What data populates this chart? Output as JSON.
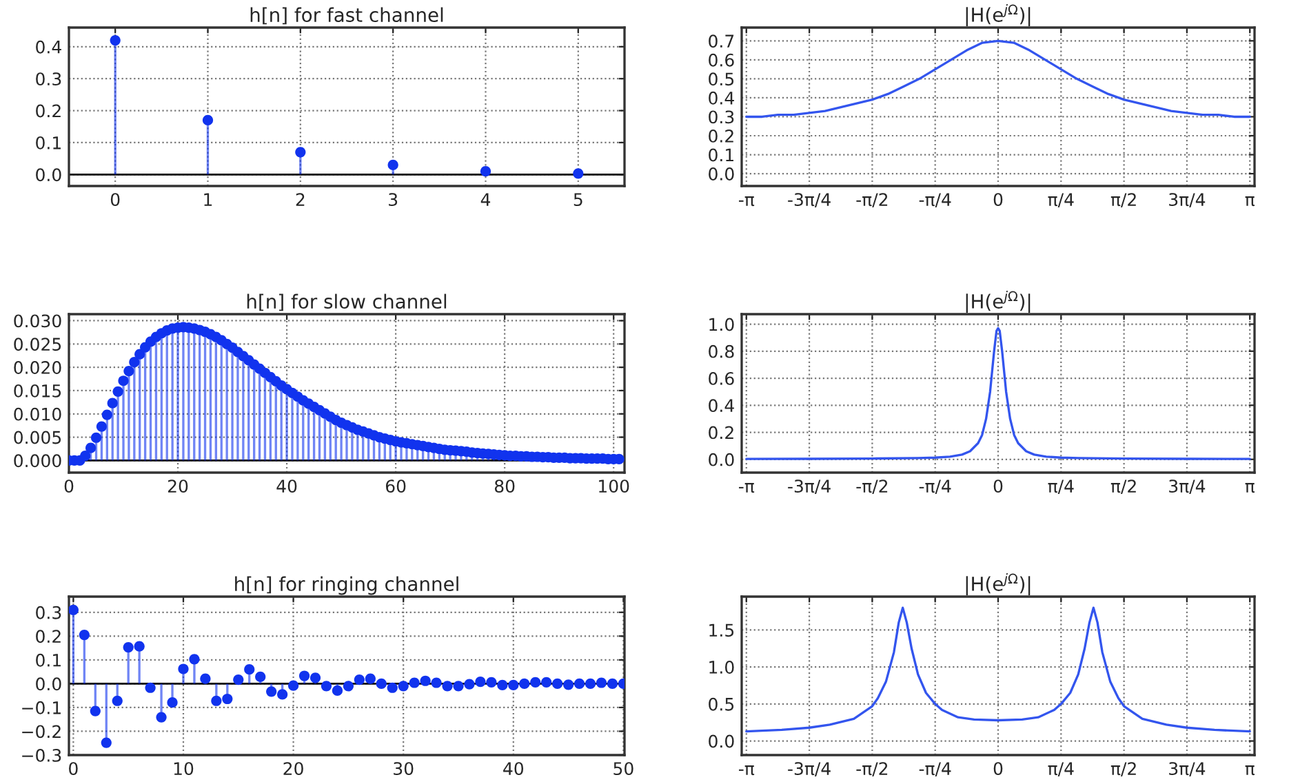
{
  "chart_data": [
    {
      "type": "lollipop",
      "title": "h[n] for fast channel",
      "x": [
        0,
        1,
        2,
        3,
        4,
        5
      ],
      "series": [
        {
          "color": "#1133ee",
          "values": [
            0.42,
            0.17,
            0.07,
            0.03,
            0.01,
            0.003
          ]
        }
      ],
      "xlim": [
        -0.5,
        5.5
      ],
      "ylim": [
        -0.036,
        0.46
      ],
      "xticks": [
        0,
        1,
        2,
        3,
        4,
        5
      ],
      "yticks": [
        {
          "value": 0,
          "label": "0.0"
        },
        0.1,
        0.2,
        0.3,
        0.4
      ],
      "grid": true,
      "marker": "circle"
    },
    {
      "type": "line",
      "title": "|H(e$^{jΩ}$)|",
      "x": [
        -3.1416,
        -2.9452,
        -2.7489,
        -2.5525,
        -2.3562,
        -2.1598,
        -1.9635,
        -1.7671,
        -1.5708,
        -1.3744,
        -1.1781,
        -0.9817,
        -0.7854,
        -0.589,
        -0.3927,
        -0.1963,
        0,
        0.1963,
        0.3927,
        0.589,
        0.7854,
        0.9817,
        1.1781,
        1.3744,
        1.5708,
        1.7671,
        1.9635,
        2.1598,
        2.3562,
        2.5525,
        2.7489,
        2.9452,
        3.1416
      ],
      "series": [
        {
          "color": "#3355ee",
          "values": [
            0.3,
            0.3,
            0.31,
            0.31,
            0.32,
            0.33,
            0.35,
            0.37,
            0.39,
            0.42,
            0.46,
            0.5,
            0.55,
            0.6,
            0.65,
            0.69,
            0.7,
            0.69,
            0.65,
            0.6,
            0.55,
            0.5,
            0.46,
            0.42,
            0.39,
            0.37,
            0.35,
            0.33,
            0.32,
            0.31,
            0.31,
            0.3,
            0.3
          ]
        }
      ],
      "xlim": [
        -3.2,
        3.2
      ],
      "ylim": [
        -0.065,
        0.77
      ],
      "xticks": [
        {
          "value": -3.1416,
          "label": "-π"
        },
        {
          "value": -2.3562,
          "label": "-3π/4"
        },
        {
          "value": -1.5708,
          "label": "-π/2"
        },
        {
          "value": -0.7854,
          "label": "-π/4"
        },
        {
          "value": 0,
          "label": "0"
        },
        {
          "value": 0.7854,
          "label": "π/4"
        },
        {
          "value": 1.5708,
          "label": "π/2"
        },
        {
          "value": 2.3562,
          "label": "3π/4"
        },
        {
          "value": 3.1416,
          "label": "π"
        }
      ],
      "yticks": [
        {
          "value": 0,
          "label": "0.0"
        },
        0.1,
        0.2,
        0.3,
        0.4,
        0.5,
        0.6,
        0.7
      ],
      "grid": true,
      "line_style": "solid"
    },
    {
      "type": "lollipop",
      "title": "h[n] for slow channel",
      "x": [
        0,
        1,
        2,
        3,
        4,
        5,
        6,
        7,
        8,
        9,
        10,
        11,
        12,
        13,
        14,
        15,
        16,
        17,
        18,
        19,
        20,
        21,
        22,
        23,
        24,
        25,
        26,
        27,
        28,
        29,
        30,
        31,
        32,
        33,
        34,
        35,
        36,
        37,
        38,
        39,
        40,
        41,
        42,
        43,
        44,
        45,
        46,
        47,
        48,
        49,
        50,
        51,
        52,
        53,
        54,
        55,
        56,
        57,
        58,
        59,
        60,
        61,
        62,
        63,
        64,
        65,
        66,
        67,
        68,
        69,
        70,
        71,
        72,
        73,
        74,
        75,
        76,
        77,
        78,
        79,
        80,
        81,
        82,
        83,
        84,
        85,
        86,
        87,
        88,
        89,
        90,
        91,
        92,
        93,
        94,
        95,
        96,
        97,
        98,
        99,
        100,
        101
      ],
      "series": [
        {
          "color": "#1133ee",
          "values": [
            0,
            0,
            0,
            0.001,
            0.0027,
            0.0049,
            0.0073,
            0.0098,
            0.0123,
            0.0148,
            0.0171,
            0.0192,
            0.0211,
            0.0228,
            0.0243,
            0.0255,
            0.0265,
            0.0273,
            0.0279,
            0.0283,
            0.0285,
            0.0286,
            0.0285,
            0.0283,
            0.028,
            0.0276,
            0.0271,
            0.0265,
            0.0258,
            0.025,
            0.0242,
            0.0233,
            0.0224,
            0.0215,
            0.0206,
            0.0197,
            0.0188,
            0.0179,
            0.017,
            0.0161,
            0.0153,
            0.0145,
            0.0137,
            0.0129,
            0.0122,
            0.0115,
            0.0108,
            0.0101,
            0.0094,
            0.0087,
            0.0081,
            0.0076,
            0.0071,
            0.0066,
            0.0062,
            0.0058,
            0.0054,
            0.005,
            0.0047,
            0.0044,
            0.0041,
            0.0039,
            0.0037,
            0.0035,
            0.0033,
            0.0031,
            0.0029,
            0.0027,
            0.0025,
            0.0023,
            0.0022,
            0.0021,
            0.002,
            0.0019,
            0.0017,
            0.0016,
            0.0015,
            0.0014,
            0.0013,
            0.0012,
            0.0011,
            0.001,
            0.001,
            0.0009,
            0.0009,
            0.0008,
            0.0008,
            0.0007,
            0.0007,
            0.0006,
            0.0006,
            0.0006,
            0.0005,
            0.0005,
            0.0005,
            0.0004,
            0.0004,
            0.0004,
            0.0004,
            0.0003,
            0.0003,
            0.0003
          ]
        }
      ],
      "xlim": [
        0,
        102
      ],
      "ylim": [
        -0.0026,
        0.0314
      ],
      "xticks": [
        0,
        20,
        40,
        60,
        80,
        100
      ],
      "yticks": [
        {
          "value": 0,
          "label": "0.000"
        },
        {
          "value": 0.005,
          "label": "0.005"
        },
        {
          "value": 0.01,
          "label": "0.010"
        },
        {
          "value": 0.015,
          "label": "0.015"
        },
        {
          "value": 0.02,
          "label": "0.020"
        },
        {
          "value": 0.025,
          "label": "0.025"
        },
        {
          "value": 0.03,
          "label": "0.030"
        }
      ],
      "grid": true,
      "marker": "circle"
    },
    {
      "type": "line",
      "title": "|H(e$^{jΩ}$)|",
      "x": [
        -3.1416,
        -2.3562,
        -1.5708,
        -1.0,
        -0.7854,
        -0.6,
        -0.45,
        -0.35,
        -0.25,
        -0.2,
        -0.15,
        -0.1,
        -0.05,
        -0.02,
        0,
        0.02,
        0.05,
        0.1,
        0.15,
        0.2,
        0.25,
        0.35,
        0.45,
        0.6,
        0.7854,
        1.0,
        1.5708,
        2.3562,
        3.1416
      ],
      "series": [
        {
          "color": "#3355ee",
          "values": [
            0.003,
            0.004,
            0.006,
            0.01,
            0.013,
            0.02,
            0.035,
            0.06,
            0.12,
            0.18,
            0.3,
            0.5,
            0.8,
            0.95,
            0.97,
            0.95,
            0.8,
            0.5,
            0.3,
            0.18,
            0.12,
            0.06,
            0.035,
            0.02,
            0.013,
            0.01,
            0.006,
            0.004,
            0.003
          ]
        }
      ],
      "xlim": [
        -3.2,
        3.2
      ],
      "ylim": [
        -0.098,
        1.074
      ],
      "xticks": [
        {
          "value": -3.1416,
          "label": "-π"
        },
        {
          "value": -2.3562,
          "label": "-3π/4"
        },
        {
          "value": -1.5708,
          "label": "-π/2"
        },
        {
          "value": -0.7854,
          "label": "-π/4"
        },
        {
          "value": 0,
          "label": "0"
        },
        {
          "value": 0.7854,
          "label": "π/4"
        },
        {
          "value": 1.5708,
          "label": "π/2"
        },
        {
          "value": 2.3562,
          "label": "3π/4"
        },
        {
          "value": 3.1416,
          "label": "π"
        }
      ],
      "yticks": [
        {
          "value": 0,
          "label": "0.0"
        },
        0.2,
        0.4,
        0.6,
        0.8,
        {
          "value": 1,
          "label": "1.0"
        }
      ],
      "grid": true,
      "line_style": "solid"
    },
    {
      "type": "lollipop",
      "title": "h[n] for ringing channel",
      "x": [
        0,
        1,
        2,
        3,
        4,
        5,
        6,
        7,
        8,
        9,
        10,
        11,
        12,
        13,
        14,
        15,
        16,
        17,
        18,
        19,
        20,
        21,
        22,
        23,
        24,
        25,
        26,
        27,
        28,
        29,
        30,
        31,
        32,
        33,
        34,
        35,
        36,
        37,
        38,
        39,
        40,
        41,
        42,
        43,
        44,
        45,
        46,
        47,
        48,
        49,
        50
      ],
      "series": [
        {
          "color": "#1133ee",
          "values": [
            0.31,
            0.205,
            -0.115,
            -0.248,
            -0.072,
            0.153,
            0.157,
            -0.017,
            -0.141,
            -0.079,
            0.062,
            0.103,
            0.021,
            -0.072,
            -0.064,
            0.017,
            0.06,
            0.029,
            -0.033,
            -0.045,
            -0.008,
            0.033,
            0.025,
            -0.01,
            -0.029,
            -0.01,
            0.017,
            0.021,
            0,
            -0.017,
            -0.01,
            0.004,
            0.012,
            0.004,
            -0.01,
            -0.01,
            -0.002,
            0.008,
            0.006,
            -0.006,
            -0.006,
            0,
            0.006,
            0.006,
            0,
            -0.004,
            0,
            0,
            0.004,
            0,
            0
          ]
        }
      ],
      "xlim": [
        -0.4,
        50.1
      ],
      "ylim": [
        -0.3,
        0.366
      ],
      "xticks": [
        0,
        10,
        20,
        30,
        40,
        50
      ],
      "yticks": [
        {
          "value": -0.3,
          "label": "−0.3"
        },
        {
          "value": -0.2,
          "label": "−0.2"
        },
        {
          "value": -0.1,
          "label": "−0.1"
        },
        {
          "value": 0,
          "label": "0.0"
        },
        0.1,
        0.2,
        0.3
      ],
      "grid": true,
      "marker": "circle"
    },
    {
      "type": "line",
      "title": "|H(e$^{jΩ}$)|",
      "x": [
        -3.1416,
        -2.7,
        -2.3562,
        -2.1,
        -1.8,
        -1.5708,
        -1.5,
        -1.4,
        -1.3,
        -1.24,
        -1.19,
        -1.14,
        -1.08,
        -1.0,
        -0.9,
        -0.7854,
        -0.7,
        -0.5,
        -0.3,
        0,
        0.3,
        0.5,
        0.7,
        0.7854,
        0.9,
        1.0,
        1.08,
        1.14,
        1.19,
        1.24,
        1.3,
        1.4,
        1.5,
        1.5708,
        1.8,
        2.1,
        2.3562,
        2.7,
        3.1416
      ],
      "series": [
        {
          "color": "#3355ee",
          "values": [
            0.13,
            0.15,
            0.18,
            0.22,
            0.3,
            0.47,
            0.58,
            0.8,
            1.2,
            1.6,
            1.8,
            1.6,
            1.25,
            0.9,
            0.65,
            0.5,
            0.42,
            0.32,
            0.29,
            0.28,
            0.29,
            0.32,
            0.42,
            0.5,
            0.65,
            0.9,
            1.25,
            1.6,
            1.8,
            1.6,
            1.2,
            0.8,
            0.58,
            0.47,
            0.3,
            0.22,
            0.18,
            0.15,
            0.13
          ]
        }
      ],
      "xlim": [
        -3.2,
        3.2
      ],
      "ylim": [
        -0.19,
        1.95
      ],
      "xticks": [
        {
          "value": -3.1416,
          "label": "-π"
        },
        {
          "value": -2.3562,
          "label": "-3π/4"
        },
        {
          "value": -1.5708,
          "label": "-π/2"
        },
        {
          "value": -0.7854,
          "label": "-π/4"
        },
        {
          "value": 0,
          "label": "0"
        },
        {
          "value": 0.7854,
          "label": "π/4"
        },
        {
          "value": 1.5708,
          "label": "π/2"
        },
        {
          "value": 2.3562,
          "label": "3π/4"
        },
        {
          "value": 3.1416,
          "label": "π"
        }
      ],
      "yticks": [
        {
          "value": 0,
          "label": "0.0"
        },
        0.5,
        {
          "value": 1,
          "label": "1.0"
        },
        1.5
      ],
      "grid": true,
      "line_style": "solid"
    }
  ]
}
